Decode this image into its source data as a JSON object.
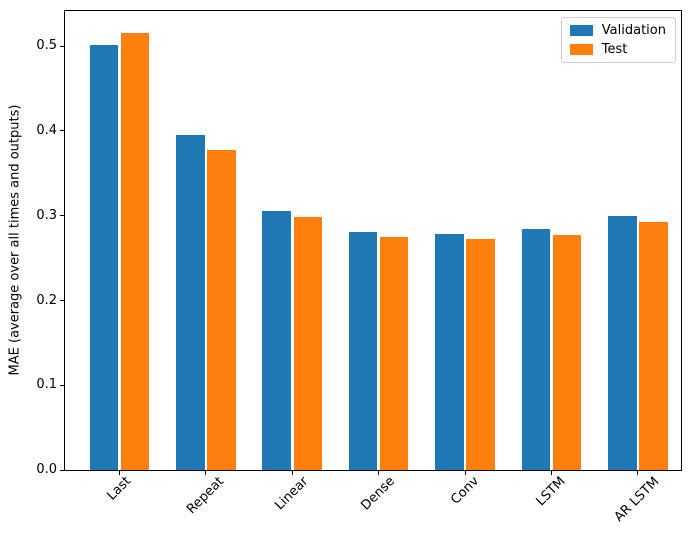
{
  "chart_data": {
    "type": "bar",
    "title": "",
    "categories": [
      "Last",
      "Repeat",
      "Linear",
      "Dense",
      "Conv",
      "LSTM",
      "AR LSTM"
    ],
    "series": [
      {
        "name": "Validation",
        "color": "#1f77b4",
        "values": [
          0.501,
          0.395,
          0.306,
          0.281,
          0.279,
          0.284,
          0.3
        ]
      },
      {
        "name": "Test",
        "color": "#ff7f0e",
        "values": [
          0.516,
          0.377,
          0.298,
          0.275,
          0.272,
          0.277,
          0.293
        ]
      }
    ],
    "xlabel": "",
    "ylabel": "MAE (average over all times and outputs)",
    "yticks": [
      "0.0",
      "0.1",
      "0.2",
      "0.3",
      "0.4",
      "0.5"
    ],
    "ylim": [
      0,
      0.5415
    ],
    "xlim": [
      -0.63,
      6.5
    ],
    "bar_width": 0.33,
    "bar_offset": 0.18,
    "x_tick_rotation": 45,
    "grid": false,
    "axis_color": "#000000",
    "legend": {
      "position": "upper right",
      "entries": [
        "Validation",
        "Test"
      ]
    }
  }
}
